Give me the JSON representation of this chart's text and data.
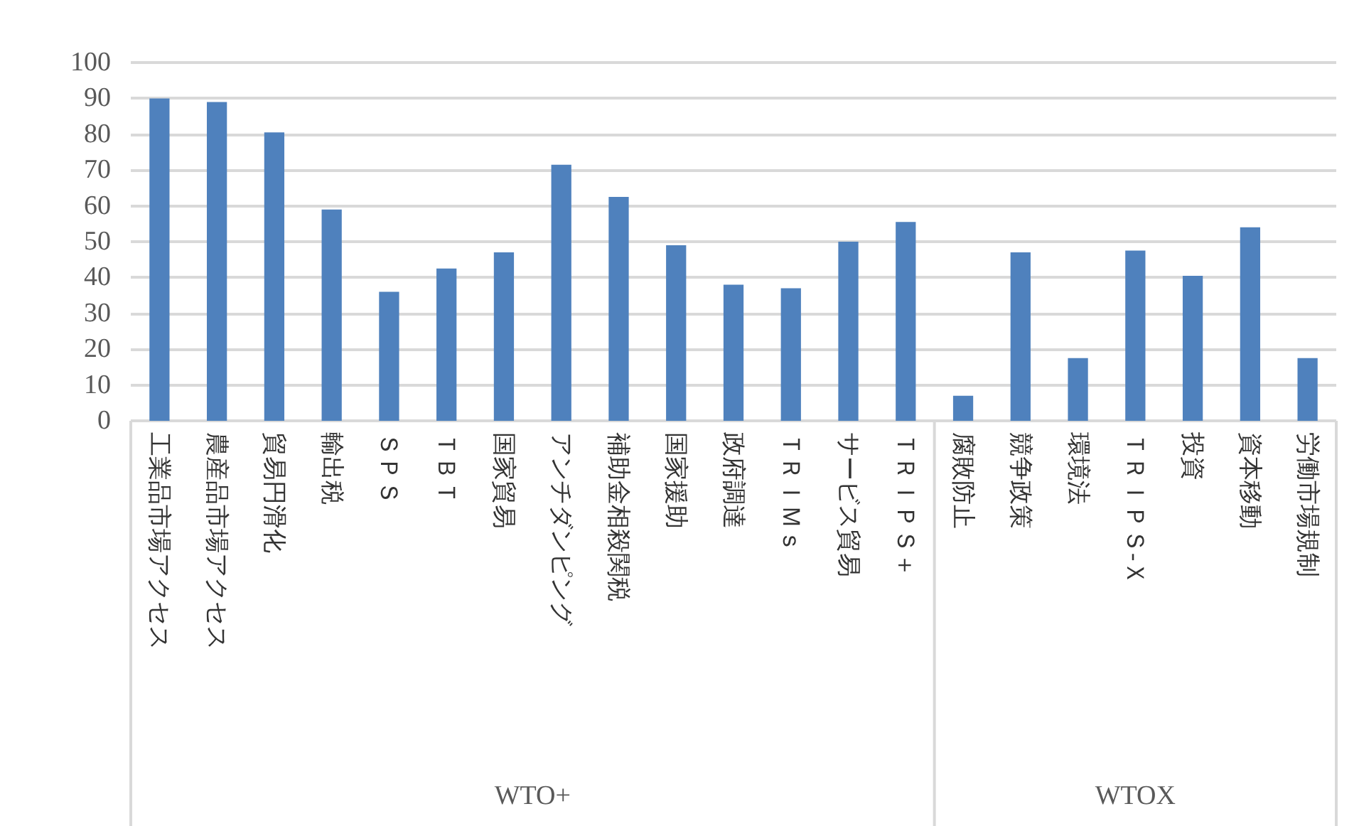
{
  "chart_data": {
    "type": "bar",
    "categories": [
      "工業品市場アクセス",
      "農産品市場アクセス",
      "貿易円滑化",
      "輸出税",
      "ＳＰＳ",
      "ＴＢＴ",
      "国家貿易",
      "アンチダンピング",
      "補助金相殺関税",
      "国家援助",
      "政府調達",
      "ＴＲＩＭｓ",
      "サービス貿易",
      "ＴＲＩＰＳ＋",
      "腐敗防止",
      "競争政策",
      "環境法",
      "ＴＲＩＰＳ-Ｘ",
      "投資",
      "資本移動",
      "労働市場規制"
    ],
    "values": [
      90,
      89,
      80.5,
      59,
      36,
      42.5,
      47,
      71.5,
      62.5,
      49,
      38,
      37,
      50,
      55.5,
      7,
      47,
      17.5,
      47.5,
      40.5,
      54,
      17.5
    ],
    "color": "#4f81bd",
    "annotations": [
      "WTO+",
      "WTOX"
    ],
    "ylim": [
      0,
      100
    ],
    "yticks": [
      0,
      10,
      20,
      30,
      40,
      50,
      60,
      70,
      80,
      90,
      100
    ],
    "grid": "y"
  }
}
